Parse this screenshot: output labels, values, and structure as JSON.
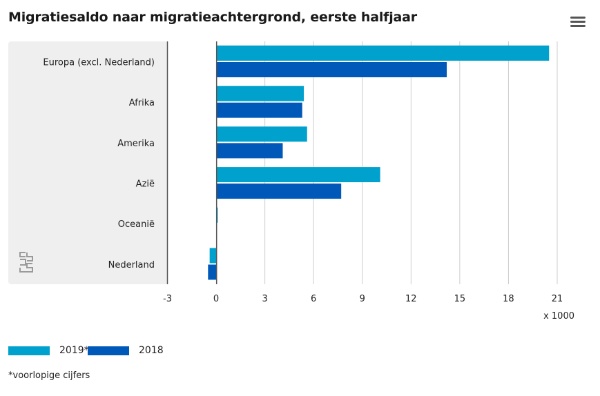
{
  "title": "Migratiesaldo naar migratieachtergrond, eerste halfjaar",
  "menu_icon": "hamburger-menu-icon",
  "logo_icon": "cbs-logo-icon",
  "footnote": "*voorlopige cijfers",
  "colors": {
    "series_2019": "#00a1cd",
    "series_2018": "#0058b8",
    "label_panel": "#efefef",
    "grid": "#cccccc",
    "axis": "#555555"
  },
  "chart_data": {
    "type": "bar",
    "orientation": "horizontal",
    "categories": [
      "Europa (excl. Nederland)",
      "Afrika",
      "Amerika",
      "Azië",
      "Oceanië",
      "Nederland"
    ],
    "series": [
      {
        "name": "2019*",
        "values": [
          20.5,
          5.4,
          5.6,
          10.1,
          0.1,
          -0.4
        ]
      },
      {
        "name": "2018",
        "values": [
          14.2,
          5.3,
          4.1,
          7.7,
          0.0,
          -0.5
        ]
      }
    ],
    "xlim": [
      -3,
      21
    ],
    "xticks": [
      "-3",
      "0",
      "3",
      "6",
      "9",
      "12",
      "15",
      "18",
      "21"
    ],
    "xunit": "x 1000",
    "grid": true,
    "legend_position": "bottom-left"
  }
}
